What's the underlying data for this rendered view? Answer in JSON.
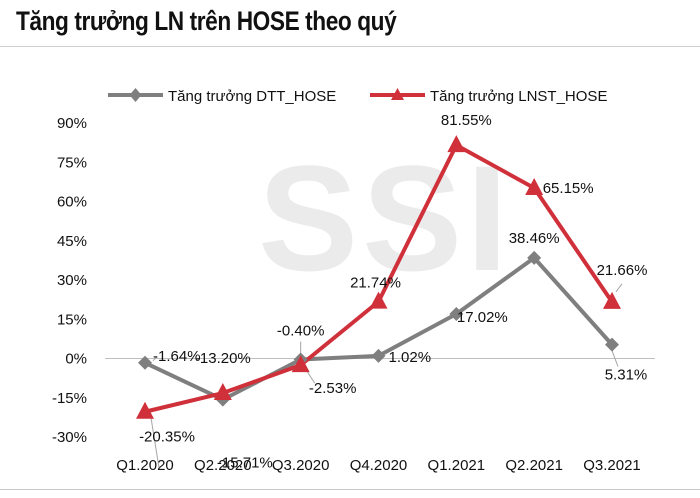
{
  "title": "Tăng trưởng LN trên HOSE theo quý",
  "watermark": "SSI",
  "chart_data": {
    "type": "line",
    "categories": [
      "Q1.2020",
      "Q2.2020",
      "Q3.2020",
      "Q4.2020",
      "Q1.2021",
      "Q2.2021",
      "Q3.2021"
    ],
    "series": [
      {
        "name": "Tăng trưởng DTT_HOSE",
        "color": "#7f7f7f",
        "marker": "diamond",
        "values": [
          -1.64,
          -15.71,
          -0.4,
          1.02,
          17.02,
          38.46,
          5.31
        ],
        "labels": [
          "-1.64%",
          "-15.71%",
          "-0.40%",
          "1.02%",
          "17.02%",
          "38.46%",
          "5.31%"
        ]
      },
      {
        "name": "Tăng trưởng LNST_HOSE",
        "color": "#d0303a",
        "marker": "triangle",
        "values": [
          -20.35,
          -13.2,
          -2.53,
          21.74,
          81.55,
          65.15,
          21.66
        ],
        "labels": [
          "-20.35%",
          "-13.20%",
          "-2.53%",
          "21.74%",
          "81.55%",
          "65.15%",
          "21.66%"
        ]
      }
    ],
    "yticks": [
      "-30%",
      "-15%",
      "0%",
      "15%",
      "30%",
      "45%",
      "60%",
      "75%",
      "90%"
    ],
    "ylim": [
      -30,
      90
    ],
    "legend": "top",
    "grid": false
  }
}
